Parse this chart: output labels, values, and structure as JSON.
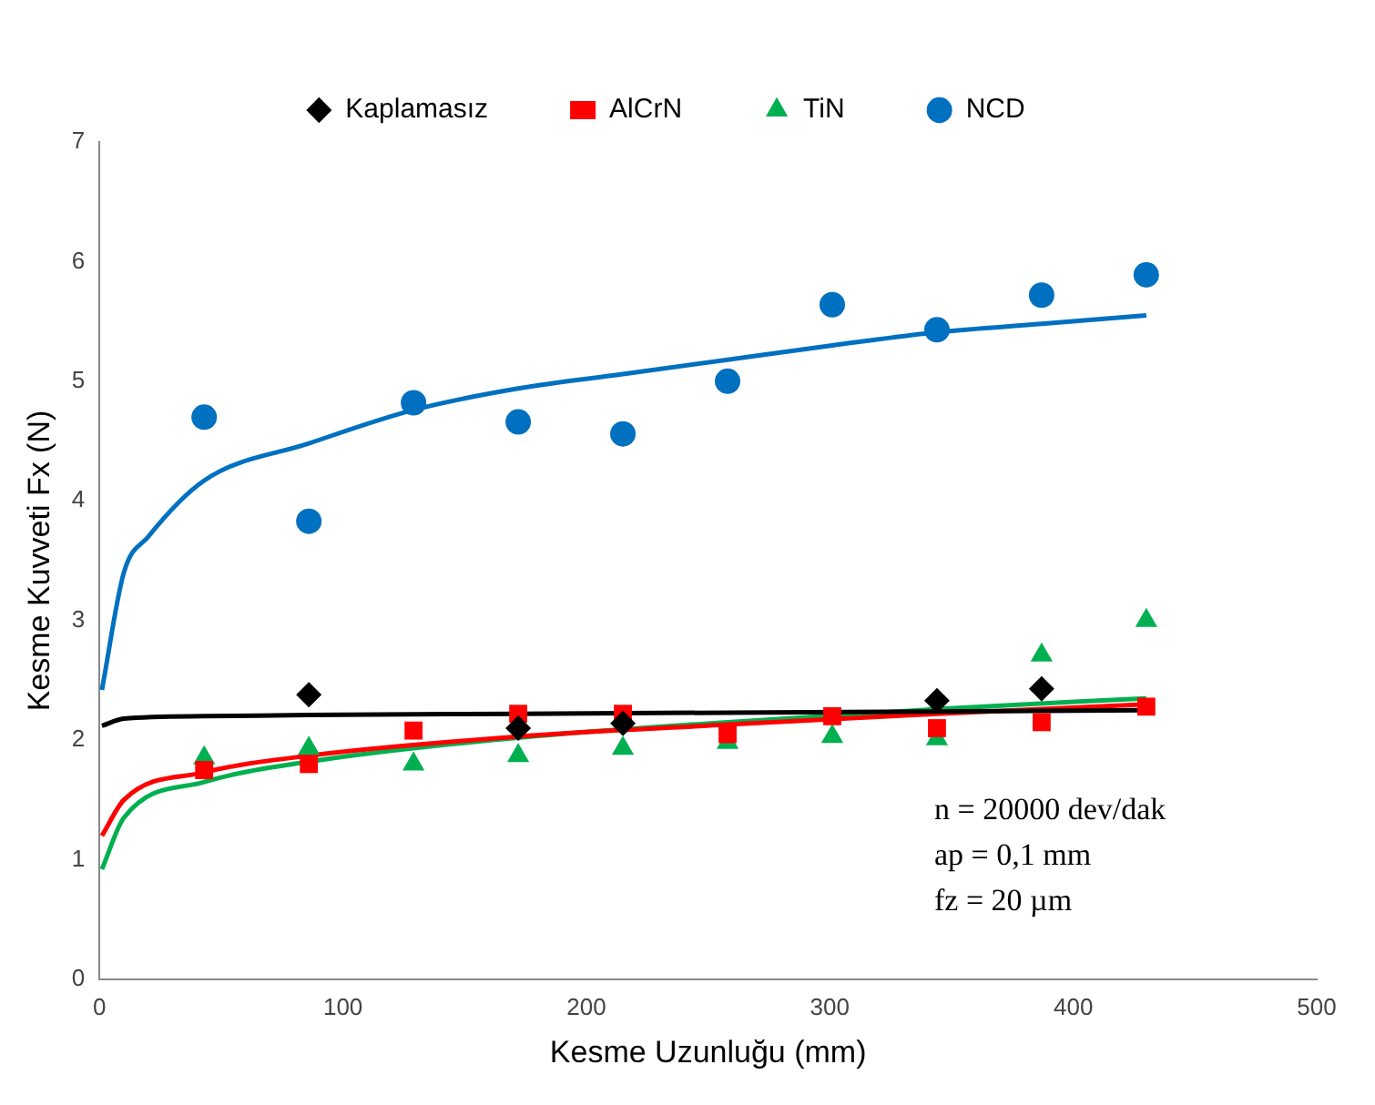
{
  "chart_data": {
    "type": "scatter",
    "xlabel": "Kesme Uzunluğu (mm)",
    "ylabel": "Kesme Kuvveti Fx (N)",
    "x": [
      43,
      86,
      129,
      172,
      215,
      258,
      301,
      344,
      387,
      430
    ],
    "xlim": [
      0,
      500
    ],
    "xticks": [
      0,
      100,
      200,
      300,
      400,
      500
    ],
    "ylim": [
      0,
      7
    ],
    "yticks": [
      0,
      1,
      2,
      3,
      4,
      5,
      6,
      7
    ],
    "grid": false,
    "legend": "top",
    "annotations": [
      "n = 20000 dev/dak",
      "ap = 0,1 mm",
      "fz = 20 µm"
    ],
    "series": [
      {
        "name": "Kaplamasız",
        "color": "#000000",
        "marker": "diamond",
        "values": [
          null,
          2.38,
          null,
          2.1,
          2.14,
          null,
          null,
          2.33,
          2.43,
          null
        ]
      },
      {
        "name": "AlCrN",
        "color": "#ff0000",
        "marker": "square",
        "values": [
          1.75,
          1.8,
          2.08,
          2.22,
          2.22,
          2.05,
          2.2,
          2.1,
          2.15,
          2.28
        ]
      },
      {
        "name": "TiN",
        "color": "#00b050",
        "marker": "triangle",
        "values": [
          1.85,
          1.93,
          1.8,
          1.87,
          1.93,
          1.98,
          2.03,
          2.01,
          2.71,
          3.0
        ]
      },
      {
        "name": "NCD",
        "color": "#0070c0",
        "marker": "circle",
        "values": [
          4.7,
          3.83,
          4.82,
          4.66,
          4.56,
          5.0,
          5.64,
          5.43,
          5.72,
          5.89
        ]
      },
      {
        "type": "line",
        "color": "#000000",
        "x": [
          1,
          10,
          43,
          86,
          172,
          258,
          430
        ],
        "values": [
          2.12,
          2.18,
          2.2,
          2.21,
          2.22,
          2.23,
          2.25
        ]
      },
      {
        "type": "line",
        "color": "#ff0000",
        "x": [
          1,
          10,
          43,
          86,
          172,
          258,
          344,
          430
        ],
        "values": [
          1.2,
          1.5,
          1.73,
          1.87,
          2.03,
          2.13,
          2.22,
          2.3
        ]
      },
      {
        "type": "line",
        "color": "#00b050",
        "x": [
          1,
          10,
          43,
          86,
          172,
          258,
          344,
          430
        ],
        "values": [
          0.92,
          1.35,
          1.65,
          1.82,
          2.02,
          2.15,
          2.26,
          2.35
        ]
      },
      {
        "type": "line",
        "color": "#0070c0",
        "x": [
          1,
          10,
          20,
          43,
          86,
          129,
          172,
          215,
          258,
          301,
          344,
          387,
          430
        ],
        "values": [
          2.42,
          3.4,
          3.7,
          4.17,
          4.48,
          4.76,
          4.94,
          5.06,
          5.18,
          5.3,
          5.41,
          5.48,
          5.55
        ]
      }
    ]
  }
}
